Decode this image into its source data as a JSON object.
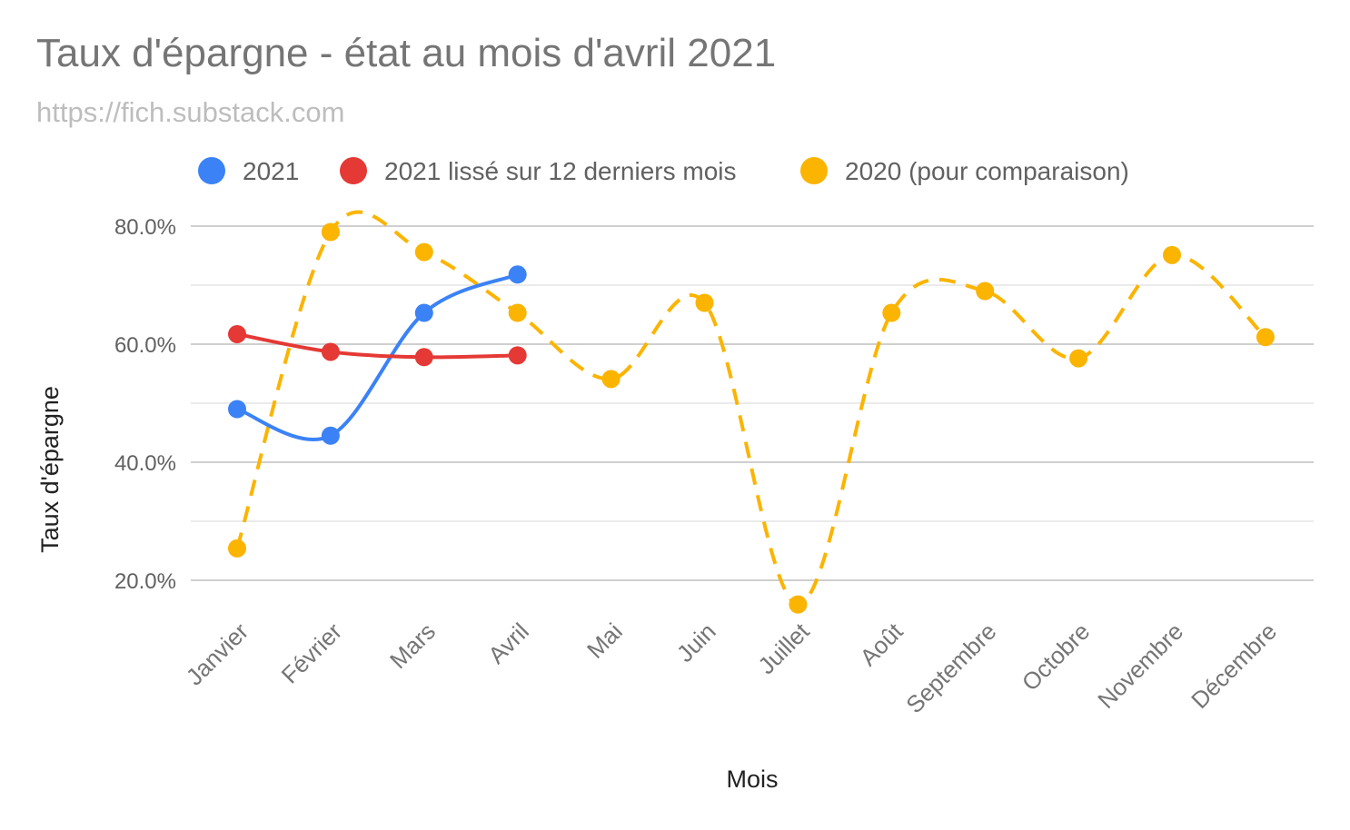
{
  "chart_data": {
    "type": "line",
    "title": "Taux d'épargne - état au mois d'avril 2021",
    "subtitle": "https://fich.substack.com",
    "xlabel": "Mois",
    "ylabel": "Taux d'épargne",
    "categories": [
      "Janvier",
      "Février",
      "Mars",
      "Avril",
      "Mai",
      "Juin",
      "Juillet",
      "Août",
      "Septembre",
      "Octobre",
      "Novembre",
      "Décembre"
    ],
    "y_ticks": [
      "20.0%",
      "40.0%",
      "60.0%",
      "80.0%"
    ],
    "ylim": [
      15,
      80
    ],
    "grid": true,
    "legend_position": "top",
    "series": [
      {
        "name": "2021",
        "color": "#3b82f6",
        "dashed": false,
        "values": [
          49.0,
          44.5,
          65.3,
          71.8,
          null,
          null,
          null,
          null,
          null,
          null,
          null,
          null
        ]
      },
      {
        "name": "2021 lissé sur 12 derniers mois",
        "color": "#e53935",
        "dashed": false,
        "values": [
          61.7,
          58.7,
          57.8,
          58.1,
          null,
          null,
          null,
          null,
          null,
          null,
          null,
          null
        ]
      },
      {
        "name": "2020 (pour comparaison)",
        "color": "#fbb400",
        "dashed": true,
        "values": [
          25.4,
          79.0,
          75.6,
          65.3,
          54.1,
          67.0,
          15.9,
          65.3,
          69.0,
          57.6,
          75.1,
          61.2
        ]
      }
    ]
  }
}
